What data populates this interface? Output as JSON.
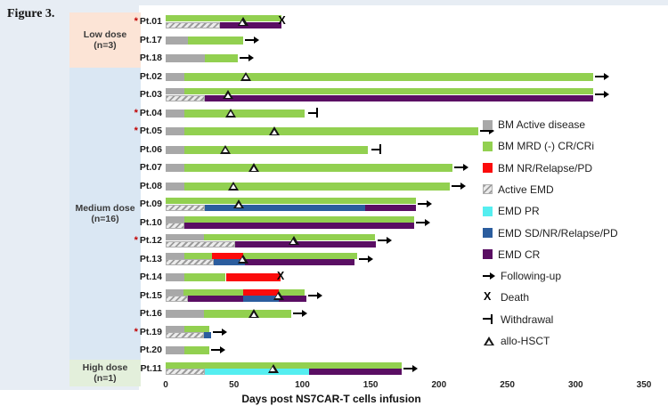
{
  "figure_label": "Figure 3.",
  "chart_data": {
    "type": "bar",
    "subtype": "swimmer-plot",
    "xlabel": "Days post NS7CAR-T cells infusion",
    "xlim": [
      0,
      350
    ],
    "x_ticks": [
      0,
      50,
      100,
      150,
      200,
      250,
      300,
      350
    ],
    "asterisk_glyph": "*",
    "marker_glyphs": {
      "death": "X"
    },
    "status_colors": {
      "gray": "#a8a8a8",
      "green": "#92d050",
      "red": "#fb0b0b",
      "hatch": "gray-diagonal-stripes",
      "cyan": "#55eef0",
      "blue": "#2b5d9e",
      "purple": "#5a0e63"
    },
    "groups": [
      {
        "label": "Low dose",
        "n": "(n=3)",
        "count": 3,
        "bg": "#fce4d6"
      },
      {
        "label": "Medium dose",
        "n": "(n=16)",
        "count": 16,
        "bg": "#dae7f3"
      },
      {
        "label": "High dose",
        "n": "(n=1)",
        "count": 1,
        "bg": "#e3efdb"
      }
    ],
    "patients": [
      {
        "id": "Pt.01",
        "asterisk": true,
        "bm": [
          [
            "green",
            0,
            85
          ]
        ],
        "emd": [
          [
            "hatch",
            0,
            40
          ],
          [
            "purple",
            40,
            85
          ]
        ],
        "hsct": 57,
        "end": "death",
        "end_day": 85
      },
      {
        "id": "Pt.17",
        "asterisk": false,
        "bm": [
          [
            "gray",
            0,
            16
          ],
          [
            "green",
            16,
            57
          ]
        ],
        "emd": null,
        "hsct": null,
        "end": "arrow",
        "end_day": 57
      },
      {
        "id": "Pt.18",
        "asterisk": false,
        "bm": [
          [
            "gray",
            0,
            29
          ],
          [
            "green",
            29,
            53
          ]
        ],
        "emd": null,
        "hsct": null,
        "end": "arrow",
        "end_day": 53
      },
      {
        "id": "Pt.02",
        "asterisk": false,
        "bm": [
          [
            "gray",
            0,
            14
          ],
          [
            "green",
            14,
            313
          ]
        ],
        "emd": null,
        "hsct": 59,
        "end": "arrow",
        "end_day": 313
      },
      {
        "id": "Pt.03",
        "asterisk": false,
        "bm": [
          [
            "gray",
            0,
            14
          ],
          [
            "green",
            14,
            313
          ]
        ],
        "emd": [
          [
            "hatch",
            0,
            29
          ],
          [
            "purple",
            29,
            313
          ]
        ],
        "hsct": 46,
        "end": "arrow",
        "end_day": 313
      },
      {
        "id": "Pt.04",
        "asterisk": true,
        "bm": [
          [
            "gray",
            0,
            14
          ],
          [
            "green",
            14,
            102
          ]
        ],
        "emd": null,
        "hsct": 48,
        "end": "withdrawal",
        "end_day": 103
      },
      {
        "id": "Pt.05",
        "asterisk": true,
        "bm": [
          [
            "gray",
            0,
            14
          ],
          [
            "green",
            14,
            229
          ]
        ],
        "emd": null,
        "hsct": 80,
        "end": "arrow",
        "end_day": 229
      },
      {
        "id": "Pt.06",
        "asterisk": false,
        "bm": [
          [
            "gray",
            0,
            14
          ],
          [
            "green",
            14,
            148
          ]
        ],
        "emd": null,
        "hsct": 44,
        "end": "withdrawal",
        "end_day": 149
      },
      {
        "id": "Pt.07",
        "asterisk": false,
        "bm": [
          [
            "gray",
            0,
            14
          ],
          [
            "green",
            14,
            210
          ]
        ],
        "emd": null,
        "hsct": 65,
        "end": "arrow",
        "end_day": 210
      },
      {
        "id": "Pt.08",
        "asterisk": false,
        "bm": [
          [
            "gray",
            0,
            14
          ],
          [
            "green",
            14,
            208
          ]
        ],
        "emd": null,
        "hsct": 50,
        "end": "arrow",
        "end_day": 208
      },
      {
        "id": "Pt.09",
        "asterisk": false,
        "bm": [
          [
            "green",
            0,
            183
          ]
        ],
        "emd": [
          [
            "hatch",
            0,
            29
          ],
          [
            "blue",
            29,
            146
          ],
          [
            "purple",
            146,
            183
          ]
        ],
        "hsct": 54,
        "end": "arrow",
        "end_day": 183
      },
      {
        "id": "Pt.10",
        "asterisk": false,
        "bm": [
          [
            "gray",
            0,
            14
          ],
          [
            "green",
            14,
            182
          ]
        ],
        "emd": [
          [
            "hatch",
            0,
            14
          ],
          [
            "purple",
            14,
            182
          ]
        ],
        "hsct": null,
        "end": "arrow",
        "end_day": 182
      },
      {
        "id": "Pt.12",
        "asterisk": true,
        "bm": [
          [
            "gray",
            0,
            28
          ],
          [
            "green",
            28,
            153
          ]
        ],
        "emd": [
          [
            "hatch",
            0,
            51
          ],
          [
            "purple",
            51,
            154
          ]
        ],
        "hsct": 94,
        "end": "arrow",
        "end_day": 154
      },
      {
        "id": "Pt.13",
        "asterisk": false,
        "bm": [
          [
            "gray",
            0,
            14
          ],
          [
            "green",
            14,
            34
          ],
          [
            "red",
            34,
            57
          ],
          [
            "green",
            57,
            140
          ]
        ],
        "emd": [
          [
            "hatch",
            0,
            35
          ],
          [
            "blue",
            35,
            58
          ],
          [
            "purple",
            58,
            138
          ]
        ],
        "hsct": 57,
        "end": "arrow",
        "end_day": 140
      },
      {
        "id": "Pt.14",
        "asterisk": false,
        "bm": [
          [
            "gray",
            0,
            14
          ],
          [
            "green",
            14,
            44
          ],
          [
            "red",
            44,
            84
          ]
        ],
        "emd": null,
        "hsct": null,
        "end": "death",
        "end_day": 84
      },
      {
        "id": "Pt.15",
        "asterisk": false,
        "bm": [
          [
            "gray",
            0,
            13
          ],
          [
            "green",
            13,
            57
          ],
          [
            "red",
            57,
            83
          ],
          [
            "green",
            83,
            102
          ]
        ],
        "emd": [
          [
            "hatch",
            0,
            16
          ],
          [
            "purple",
            16,
            57
          ],
          [
            "blue",
            57,
            83
          ],
          [
            "purple",
            83,
            103
          ]
        ],
        "hsct": 83,
        "end": "arrow",
        "end_day": 103
      },
      {
        "id": "Pt.16",
        "asterisk": false,
        "bm": [
          [
            "gray",
            0,
            28
          ],
          [
            "green",
            28,
            92
          ]
        ],
        "emd": null,
        "hsct": 65,
        "end": "arrow",
        "end_day": 92
      },
      {
        "id": "Pt.19",
        "asterisk": true,
        "bm": [
          [
            "gray",
            0,
            14
          ],
          [
            "green",
            14,
            32
          ]
        ],
        "emd": [
          [
            "hatch",
            0,
            28
          ],
          [
            "blue",
            28,
            33
          ]
        ],
        "hsct": null,
        "end": "arrow",
        "end_day": 33
      },
      {
        "id": "Pt.20",
        "asterisk": false,
        "bm": [
          [
            "gray",
            0,
            14
          ],
          [
            "green",
            14,
            32
          ]
        ],
        "emd": null,
        "hsct": null,
        "end": "arrow",
        "end_day": 32
      },
      {
        "id": "Pt.11",
        "asterisk": false,
        "bm": [
          [
            "green",
            0,
            173
          ]
        ],
        "emd": [
          [
            "hatch",
            0,
            29
          ],
          [
            "cyan",
            29,
            105
          ],
          [
            "purple",
            105,
            173
          ]
        ],
        "hsct": 79,
        "end": "arrow",
        "end_day": 173
      }
    ],
    "legend": [
      {
        "kind": "swatch",
        "key": "gray",
        "label": "BM Active disease"
      },
      {
        "kind": "swatch",
        "key": "green",
        "label": "BM MRD (-) CR/CRi"
      },
      {
        "kind": "swatch",
        "key": "red",
        "label": "BM NR/Relapse/PD"
      },
      {
        "kind": "swatch",
        "key": "hatch",
        "label": "Active EMD"
      },
      {
        "kind": "swatch",
        "key": "cyan",
        "label": "EMD PR"
      },
      {
        "kind": "swatch",
        "key": "blue",
        "label": "EMD SD/NR/Relapse/PD"
      },
      {
        "kind": "swatch",
        "key": "purple",
        "label": "EMD CR"
      },
      {
        "kind": "marker",
        "key": "arrow",
        "label": "Following-up"
      },
      {
        "kind": "marker",
        "key": "death",
        "label": "Death"
      },
      {
        "kind": "marker",
        "key": "withdrawal",
        "label": "Withdrawal"
      },
      {
        "kind": "marker",
        "key": "triangle",
        "label": "allo-HSCT"
      }
    ]
  }
}
